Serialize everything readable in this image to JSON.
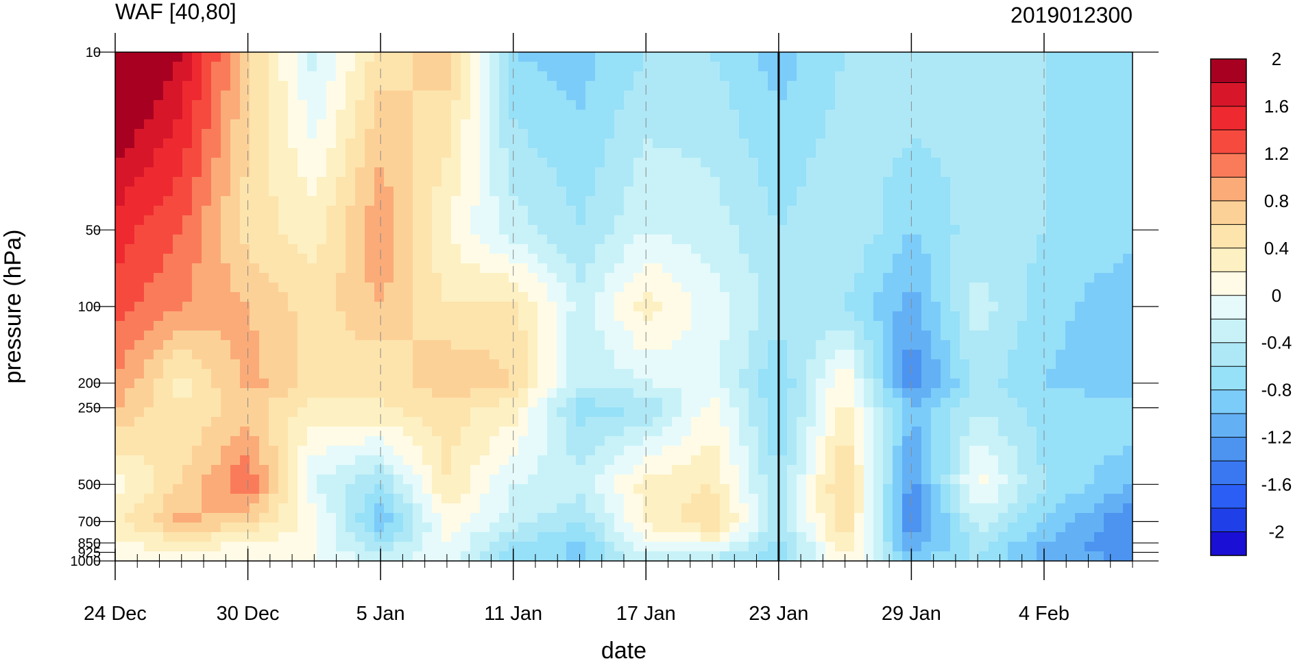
{
  "chart_data": {
    "type": "heatmap",
    "title": "WAF [40,80]",
    "subtitle": "2019012300",
    "xlabel": "date",
    "ylabel": "pressure (hPa)",
    "y_scale": "log",
    "y_inverted": true,
    "ylim": [
      1000,
      10
    ],
    "xlim": [
      "2018-12-24",
      "2019-02-08"
    ],
    "x_ticks": [
      {
        "date": "2018-12-24",
        "label": "24 Dec"
      },
      {
        "date": "2018-12-30",
        "label": "30 Dec"
      },
      {
        "date": "2019-01-05",
        "label": "5 Jan"
      },
      {
        "date": "2019-01-11",
        "label": "11 Jan"
      },
      {
        "date": "2019-01-17",
        "label": "17 Jan"
      },
      {
        "date": "2019-01-23",
        "label": "23 Jan"
      },
      {
        "date": "2019-01-29",
        "label": "29 Jan"
      },
      {
        "date": "2019-02-04",
        "label": "4 Feb"
      }
    ],
    "y_ticks": [
      {
        "value": 10,
        "label": "10"
      },
      {
        "value": 50,
        "label": "50"
      },
      {
        "value": 100,
        "label": "100"
      },
      {
        "value": 200,
        "label": "200"
      },
      {
        "value": 250,
        "label": "250"
      },
      {
        "value": 500,
        "label": "500"
      },
      {
        "value": 700,
        "label": "700"
      },
      {
        "value": 850,
        "label": "850"
      },
      {
        "value": 925,
        "label": "925"
      },
      {
        "value": 1000,
        "label": "1000"
      }
    ],
    "reference_line_date": "2019-01-23",
    "colorbar": {
      "levels": [
        -2.2,
        -2,
        -1.8,
        -1.6,
        -1.4,
        -1.2,
        -1,
        -0.8,
        -0.6,
        -0.4,
        -0.2,
        0,
        0.2,
        0.4,
        0.6,
        0.8,
        1,
        1.2,
        1.4,
        1.6,
        1.8,
        2,
        2.2
      ],
      "colors": [
        "#1a0fd4",
        "#1f3fe8",
        "#2b5ef5",
        "#3a78f2",
        "#4c94f0",
        "#64b0f5",
        "#7cccfa",
        "#96e0f8",
        "#aee8f6",
        "#c8f2f8",
        "#e6fafb",
        "#fffbe6",
        "#fdf0c2",
        "#fde4ac",
        "#fcd197",
        "#fbab78",
        "#fa7b5a",
        "#f64a3f",
        "#ee2a30",
        "#d8162a",
        "#a80021"
      ],
      "labels": [
        {
          "value": 2,
          "label": "2"
        },
        {
          "value": 1.6,
          "label": "1.6"
        },
        {
          "value": 1.2,
          "label": "1.2"
        },
        {
          "value": 0.8,
          "label": "0.8"
        },
        {
          "value": 0.4,
          "label": "0.4"
        },
        {
          "value": 0,
          "label": "0"
        },
        {
          "value": -0.4,
          "label": "-0.4"
        },
        {
          "value": -0.8,
          "label": "-0.8"
        },
        {
          "value": -1.2,
          "label": "-1.2"
        },
        {
          "value": -1.6,
          "label": "-1.6"
        },
        {
          "value": -2,
          "label": "-2"
        }
      ]
    },
    "grid": {
      "dates": [
        "2018-12-24",
        "2018-12-27",
        "2018-12-30",
        "2019-01-02",
        "2019-01-05",
        "2019-01-08",
        "2019-01-11",
        "2019-01-14",
        "2019-01-17",
        "2019-01-20",
        "2019-01-23",
        "2019-01-26",
        "2019-01-29",
        "2019-02-01",
        "2019-02-04",
        "2019-02-08"
      ],
      "pressure": [
        10,
        50,
        100,
        200,
        250,
        500,
        700,
        850,
        925,
        1000
      ],
      "waf": [
        [
          2.3,
          1.8,
          0.7,
          -0.3,
          0.5,
          0.7,
          -0.8,
          -0.9,
          -0.6,
          -0.6,
          -0.9,
          -0.6,
          -0.4,
          -0.6,
          -0.6,
          -0.7
        ],
        [
          1.5,
          1.2,
          0.5,
          0.3,
          1.0,
          0.2,
          -0.3,
          -0.6,
          -0.2,
          -0.3,
          -0.6,
          -0.4,
          -0.8,
          -0.5,
          -0.6,
          -0.7
        ],
        [
          1.3,
          1.0,
          0.8,
          0.5,
          0.8,
          0.4,
          0.5,
          -0.3,
          0.3,
          -0.1,
          -0.5,
          -0.6,
          -1.1,
          -0.3,
          -0.7,
          -1.0
        ],
        [
          1.0,
          0.3,
          0.9,
          0.5,
          0.4,
          0.8,
          0.6,
          -0.4,
          -0.2,
          -0.1,
          -0.8,
          0.2,
          -1.4,
          -0.5,
          -0.8,
          -1.0
        ],
        [
          0.8,
          0.4,
          0.7,
          0.3,
          0.4,
          0.5,
          0.3,
          -0.7,
          -0.6,
          0.1,
          -0.8,
          0.3,
          -1.0,
          -0.4,
          -0.7,
          -0.6
        ],
        [
          0.1,
          0.6,
          1.2,
          -0.2,
          -0.6,
          0.4,
          -0.2,
          -0.3,
          0.3,
          0.4,
          -0.6,
          0.7,
          -1.3,
          0.1,
          -0.6,
          -1.0
        ],
        [
          0.3,
          0.9,
          0.6,
          0.1,
          -1.0,
          0.1,
          -0.3,
          -0.6,
          0.2,
          0.6,
          -0.5,
          0.6,
          -1.4,
          -0.3,
          -0.8,
          -1.4
        ],
        [
          0.2,
          0.3,
          0.2,
          0.0,
          -0.6,
          0.0,
          -0.6,
          -0.8,
          0.0,
          0.1,
          -0.7,
          0.4,
          -1.2,
          -0.5,
          -1.0,
          -1.4
        ],
        [
          0.1,
          0.2,
          0.1,
          0.0,
          -0.4,
          0.0,
          -0.8,
          -0.9,
          -0.2,
          -0.3,
          -0.8,
          0.3,
          -1.0,
          -0.6,
          -1.1,
          -1.3
        ],
        [
          0.1,
          0.1,
          0.0,
          0.0,
          -0.3,
          0.0,
          -0.7,
          -0.7,
          -0.3,
          -0.4,
          -0.6,
          0.2,
          -0.8,
          -0.5,
          -1.0,
          -1.2
        ]
      ]
    }
  }
}
